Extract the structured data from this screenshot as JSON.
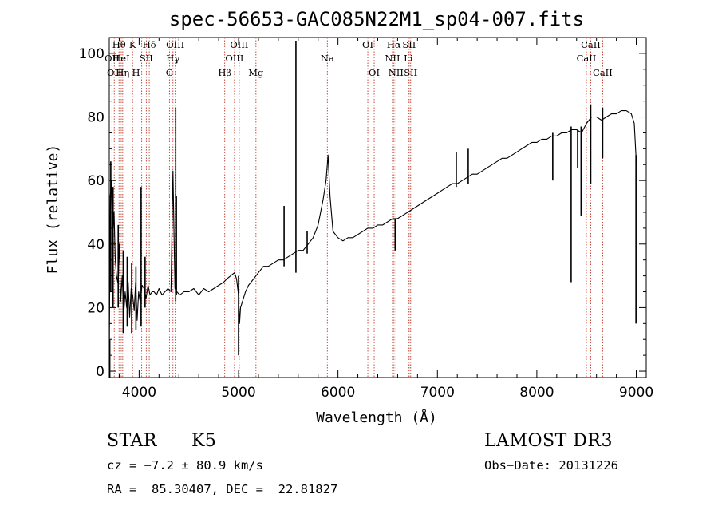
{
  "chart_data": {
    "type": "line",
    "title": "spec-56653-GAC085N22M1_sp04-007.fits",
    "xlabel": "Wavelength (Å)",
    "ylabel": "Flux (relative)",
    "xlim": [
      3700,
      9100
    ],
    "ylim": [
      -2,
      105
    ],
    "xticks": [
      4000,
      5000,
      6000,
      7000,
      8000,
      9000
    ],
    "yticks": [
      0,
      20,
      40,
      60,
      80,
      100
    ],
    "x_tick_labels": [
      "4000",
      "5000",
      "6000",
      "7000",
      "8000",
      "9000"
    ],
    "y_tick_labels": [
      "0",
      "20",
      "40",
      "60",
      "80",
      "100"
    ],
    "grid": false,
    "series": [
      {
        "color": "#000000",
        "x": [
          3700,
          3710,
          3722,
          3735,
          3748,
          3760,
          3772,
          3785,
          3800,
          3815,
          3830,
          3845,
          3860,
          3875,
          3890,
          3905,
          3920,
          3935,
          3950,
          3965,
          3980,
          3995,
          4010,
          4030,
          4050,
          4070,
          4090,
          4110,
          4130,
          4150,
          4175,
          4200,
          4230,
          4260,
          4290,
          4320,
          4340,
          4360,
          4380,
          4410,
          4450,
          4500,
          4550,
          4600,
          4650,
          4700,
          4750,
          4800,
          4850,
          4880,
          4920,
          4960,
          4980,
          5000,
          5010,
          5020,
          5040,
          5070,
          5100,
          5150,
          5200,
          5250,
          5300,
          5350,
          5400,
          5450,
          5500,
          5550,
          5600,
          5650,
          5700,
          5750,
          5800,
          5850,
          5880,
          5900,
          5920,
          5950,
          6000,
          6050,
          6100,
          6150,
          6200,
          6250,
          6300,
          6350,
          6400,
          6450,
          6500,
          6550,
          6600,
          6650,
          6700,
          6750,
          6800,
          6850,
          6900,
          6950,
          7000,
          7050,
          7100,
          7150,
          7200,
          7250,
          7300,
          7350,
          7400,
          7450,
          7500,
          7550,
          7600,
          7650,
          7700,
          7750,
          7800,
          7850,
          7900,
          7950,
          8000,
          8050,
          8100,
          8150,
          8200,
          8250,
          8300,
          8350,
          8400,
          8450,
          8500,
          8550,
          8600,
          8650,
          8700,
          8750,
          8800,
          8850,
          8900,
          8950,
          8980,
          9000
        ],
        "y": [
          2,
          55,
          60,
          42,
          50,
          35,
          30,
          28,
          40,
          22,
          30,
          18,
          25,
          20,
          28,
          17,
          26,
          24,
          19,
          28,
          16,
          25,
          22,
          27,
          26,
          23,
          27,
          24,
          25,
          25,
          24,
          26,
          24,
          25,
          26,
          25,
          63,
          26,
          25,
          24,
          25,
          25,
          26,
          24,
          26,
          25,
          26,
          27,
          28,
          29,
          30,
          31,
          29,
          24,
          15,
          20,
          22,
          25,
          27,
          29,
          31,
          33,
          33,
          34,
          35,
          35,
          36,
          37,
          38,
          38,
          40,
          42,
          46,
          54,
          60,
          68,
          55,
          44,
          42,
          41,
          42,
          42,
          43,
          44,
          45,
          45,
          46,
          46,
          47,
          48,
          48,
          49,
          50,
          51,
          52,
          53,
          54,
          55,
          56,
          57,
          58,
          59,
          59,
          60,
          61,
          62,
          62,
          63,
          64,
          65,
          66,
          67,
          67,
          68,
          69,
          70,
          71,
          72,
          72,
          73,
          73,
          74,
          74,
          75,
          75,
          76,
          76,
          75,
          78,
          80,
          80,
          79,
          80,
          81,
          81,
          82,
          82,
          81,
          78,
          66
        ]
      }
    ],
    "spikes": [
      {
        "x": 3705,
        "y1": -2,
        "y2": 10
      },
      {
        "x": 3715,
        "y1": 25,
        "y2": 66
      },
      {
        "x": 3738,
        "y1": 20,
        "y2": 58
      },
      {
        "x": 3790,
        "y1": 20,
        "y2": 46
      },
      {
        "x": 3840,
        "y1": 12,
        "y2": 38
      },
      {
        "x": 3880,
        "y1": 14,
        "y2": 36
      },
      {
        "x": 3925,
        "y1": 12,
        "y2": 34
      },
      {
        "x": 3968,
        "y1": 13,
        "y2": 33
      },
      {
        "x": 4020,
        "y1": 14,
        "y2": 58
      },
      {
        "x": 4060,
        "y1": 20,
        "y2": 36
      },
      {
        "x": 4368,
        "y1": 22,
        "y2": 83
      },
      {
        "x": 4375,
        "y1": 24,
        "y2": 55
      },
      {
        "x": 5000,
        "y1": 5,
        "y2": 30
      },
      {
        "x": 5458,
        "y1": 33,
        "y2": 52
      },
      {
        "x": 5577,
        "y1": 31,
        "y2": 104
      },
      {
        "x": 5690,
        "y1": 37,
        "y2": 44
      },
      {
        "x": 6575,
        "y1": 38,
        "y2": 48
      },
      {
        "x": 6580,
        "y1": 38,
        "y2": 48
      },
      {
        "x": 7190,
        "y1": 58,
        "y2": 69
      },
      {
        "x": 7310,
        "y1": 59,
        "y2": 70
      },
      {
        "x": 8160,
        "y1": 60,
        "y2": 75
      },
      {
        "x": 8345,
        "y1": 28,
        "y2": 77
      },
      {
        "x": 8410,
        "y1": 64,
        "y2": 76
      },
      {
        "x": 8445,
        "y1": 49,
        "y2": 77
      },
      {
        "x": 8542,
        "y1": 59,
        "y2": 84
      },
      {
        "x": 8662,
        "y1": 67,
        "y2": 83
      },
      {
        "x": 8997,
        "y1": 15,
        "y2": 68
      }
    ],
    "reference_line_color": "#c0392b",
    "reference_lines": [
      {
        "x": 3727,
        "label": "OII",
        "row": 1
      },
      {
        "x": 3750,
        "label": "OII",
        "row": 2
      },
      {
        "x": 3798,
        "label": "Hθ",
        "row": 0
      },
      {
        "x": 3820,
        "label": "HeI",
        "row": 1
      },
      {
        "x": 3835,
        "label": "Hη",
        "row": 2
      },
      {
        "x": 3889,
        "label": "",
        "row": 0
      },
      {
        "x": 3934,
        "label": "K",
        "row": 0
      },
      {
        "x": 3969,
        "label": "H",
        "row": 2
      },
      {
        "x": 4026,
        "label": "",
        "row": 0
      },
      {
        "x": 4072,
        "label": "SII",
        "row": 1
      },
      {
        "x": 4102,
        "label": "Hδ",
        "row": 0
      },
      {
        "x": 4305,
        "label": "G",
        "row": 2
      },
      {
        "x": 4340,
        "label": "Hγ",
        "row": 1
      },
      {
        "x": 4363,
        "label": "OIII",
        "row": 0
      },
      {
        "x": 4861,
        "label": "Hβ",
        "row": 2
      },
      {
        "x": 4959,
        "label": "OIII",
        "row": 1
      },
      {
        "x": 5007,
        "label": "OIII",
        "row": 0
      },
      {
        "x": 5175,
        "label": "Mg",
        "row": 2
      },
      {
        "x": 5893,
        "label": "Na",
        "row": 1
      },
      {
        "x": 6300,
        "label": "OI",
        "row": 0
      },
      {
        "x": 6364,
        "label": "OI",
        "row": 2
      },
      {
        "x": 6548,
        "label": "NII",
        "row": 1
      },
      {
        "x": 6563,
        "label": "Hα",
        "row": 0
      },
      {
        "x": 6583,
        "label": "NII",
        "row": 2
      },
      {
        "x": 6707,
        "label": "Li",
        "row": 1
      },
      {
        "x": 6716,
        "label": "SII",
        "row": 0
      },
      {
        "x": 6731,
        "label": "SII",
        "row": 2
      },
      {
        "x": 8498,
        "label": "CaII",
        "row": 1
      },
      {
        "x": 8542,
        "label": "CaII",
        "row": 0
      },
      {
        "x": 8662,
        "label": "CaII",
        "row": 2
      }
    ]
  },
  "info": {
    "class_label": "STAR",
    "subclass_label": "K5",
    "survey_label": "LAMOST DR3",
    "cz_text": "cz = −7.2 ± 80.9 km/s",
    "obs_date_text": "Obs−Date: 20131226",
    "coords_text": "RA =  85.30407, DEC =  22.81827"
  }
}
